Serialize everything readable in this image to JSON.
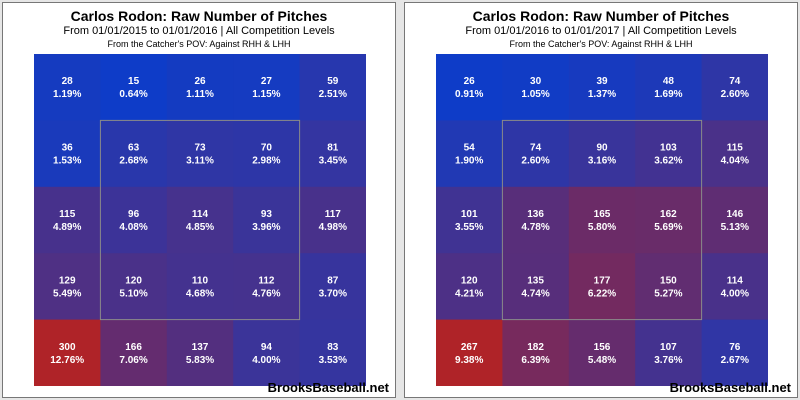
{
  "chart_data": [
    {
      "type": "heatmap",
      "title": "Carlos Rodon: Raw Number of Pitches",
      "subtitle": "From 01/01/2015 to 01/01/2016 | All Competition Levels",
      "note": "From the Catcher's POV:  Against RHH & LHH",
      "watermark": "BrooksBaseball.net",
      "grid": {
        "rows": 5,
        "cols": 5,
        "strike_zone": "inner 3x3"
      },
      "values": [
        [
          28,
          15,
          26,
          27,
          59
        ],
        [
          36,
          63,
          73,
          70,
          81
        ],
        [
          115,
          96,
          114,
          93,
          117
        ],
        [
          129,
          120,
          110,
          112,
          87
        ],
        [
          300,
          166,
          137,
          94,
          83
        ]
      ],
      "labels": [
        [
          "28|1.19%",
          "15|0.64%",
          "26|1.11%",
          "27|1.15%",
          "59|2.51%"
        ],
        [
          "36|1.53%",
          "63|2.68%",
          "73|3.11%",
          "70|2.98%",
          "81|3.45%"
        ],
        [
          "115|4.89%",
          "96|4.08%",
          "114|4.85%",
          "93|3.96%",
          "117|4.98%"
        ],
        [
          "129|5.49%",
          "120|5.10%",
          "110|4.68%",
          "112|4.76%",
          "87|3.70%"
        ],
        [
          "300|12.76%",
          "166|7.06%",
          "137|5.83%",
          "94|4.00%",
          "83|3.53%"
        ]
      ]
    },
    {
      "type": "heatmap",
      "title": "Carlos Rodon: Raw Number of Pitches",
      "subtitle": "From 01/01/2016 to 01/01/2017 | All Competition Levels",
      "note": "From the Catcher's POV:  Against RHH & LHH",
      "watermark": "BrooksBaseball.net",
      "grid": {
        "rows": 5,
        "cols": 5,
        "strike_zone": "inner 3x3"
      },
      "values": [
        [
          26,
          30,
          39,
          48,
          74
        ],
        [
          54,
          74,
          90,
          103,
          115
        ],
        [
          101,
          136,
          165,
          162,
          146
        ],
        [
          120,
          135,
          177,
          150,
          114
        ],
        [
          267,
          182,
          156,
          107,
          76
        ]
      ],
      "labels": [
        [
          "26|0.91%",
          "30|1.05%",
          "39|1.37%",
          "48|1.69%",
          "74|2.60%"
        ],
        [
          "54|1.90%",
          "74|2.60%",
          "90|3.16%",
          "103|3.62%",
          "115|4.04%"
        ],
        [
          "101|3.55%",
          "136|4.78%",
          "165|5.80%",
          "162|5.69%",
          "146|5.13%"
        ],
        [
          "120|4.21%",
          "135|4.74%",
          "177|6.22%",
          "150|5.27%",
          "114|4.00%"
        ],
        [
          "267|9.38%",
          "182|6.39%",
          "156|5.48%",
          "107|3.76%",
          "76|2.67%"
        ]
      ]
    }
  ]
}
